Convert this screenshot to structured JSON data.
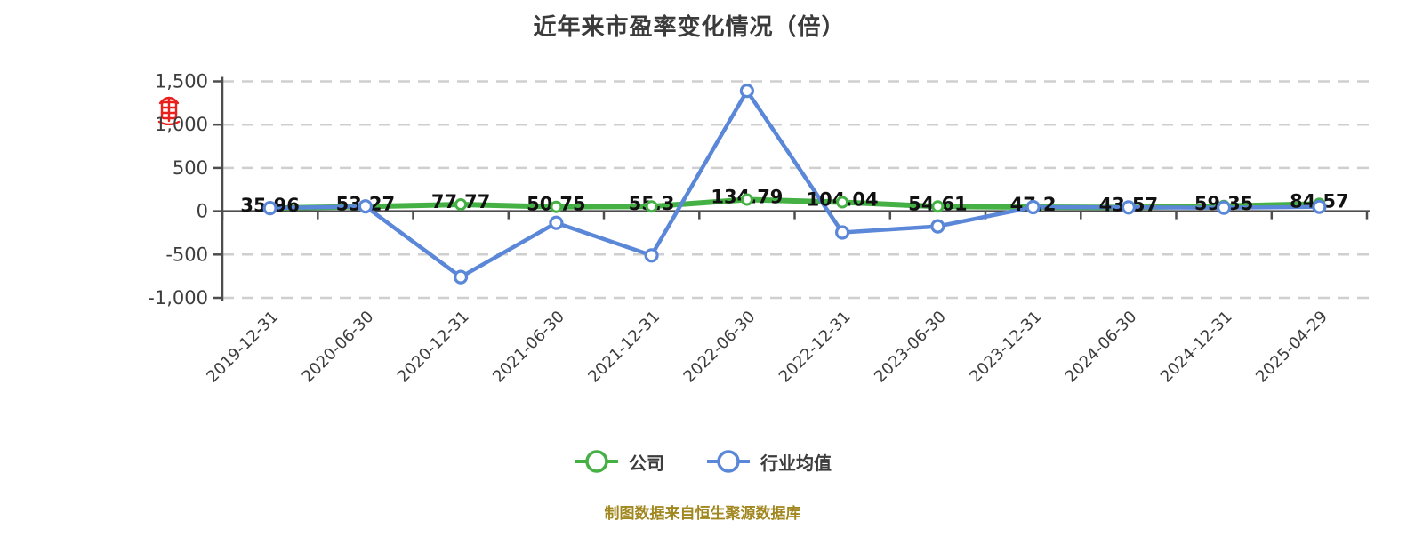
{
  "title": "近年来市盈率变化情况（倍）",
  "footer": "制图数据来自恒生聚源数据库",
  "icons": {
    "watermark": "red-seal-icon"
  },
  "colors": {
    "company": "#45b145",
    "industry": "#5b87d9",
    "axis": "#4d4d4d",
    "grid": "#cfcfcf",
    "tick_label": "#3d3d3d",
    "value_label": "#111111",
    "title": "#3b3b3b",
    "footer": "#a1871f",
    "seal": "#e8211d"
  },
  "legend": [
    {
      "label": "公司",
      "color": "#45b145"
    },
    {
      "label": "行业均值",
      "color": "#5b87d9"
    }
  ],
  "chart_data": {
    "type": "line",
    "title": "近年来市盈率变化情况（倍）",
    "categories": [
      "2019-12-31",
      "2020-06-30",
      "2020-12-31",
      "2021-06-30",
      "2021-12-31",
      "2022-06-30",
      "2022-12-31",
      "2023-06-30",
      "2023-12-31",
      "2024-06-30",
      "2024-12-31",
      "2025-04-29"
    ],
    "series": [
      {
        "name": "公司",
        "color": "#45b145",
        "values": [
          35.96,
          53.27,
          77.77,
          50.75,
          55.3,
          134.79,
          104.04,
          54.61,
          47.2,
          43.57,
          59.35,
          84.57
        ],
        "labels": [
          "35.96",
          "53.27",
          "77.77",
          "50.75",
          "55.3",
          "134.79",
          "104.04",
          "54.61",
          "47.2",
          "43.57",
          "59.35",
          "84.57"
        ],
        "labeled": true
      },
      {
        "name": "行业均值",
        "color": "#5b87d9",
        "values": [
          36,
          55,
          -760,
          -135,
          -510,
          1390,
          -245,
          -175,
          47,
          44,
          40,
          50
        ],
        "labeled": false,
        "note": "values estimated from gridlines"
      }
    ],
    "ylim": [
      -1000,
      1500
    ],
    "yticks": [
      1500,
      1000,
      500,
      0,
      -500,
      -1000
    ],
    "grid": "horizontal-dashed",
    "legend_position": "bottom",
    "x_label_rotation": -45
  }
}
